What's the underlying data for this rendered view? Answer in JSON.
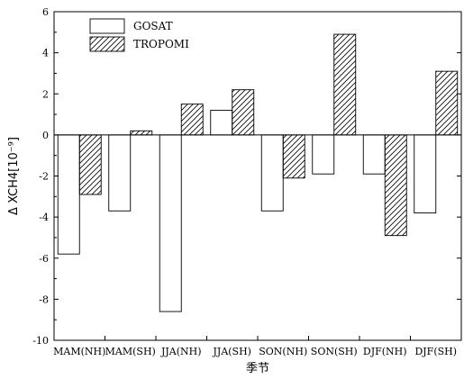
{
  "chart_data": {
    "type": "bar",
    "categories": [
      "MAM(NH)",
      "MAM(SH)",
      "JJA(NH)",
      "JJA(SH)",
      "SON(NH)",
      "SON(SH)",
      "DJF(NH)",
      "DJF(SH)"
    ],
    "series": [
      {
        "name": "GOSAT",
        "values": [
          -5.8,
          -3.7,
          -8.6,
          1.2,
          -3.7,
          -1.9,
          -1.9,
          -3.8
        ],
        "pattern": "none"
      },
      {
        "name": "TROPOMI",
        "values": [
          -2.9,
          0.2,
          1.5,
          2.2,
          -2.1,
          4.9,
          -4.9,
          3.1
        ],
        "pattern": "hatch"
      }
    ],
    "title": "",
    "xlabel": "季节",
    "ylabel": "Δ XCH4[10⁻⁹]",
    "ylim": [
      -10,
      6
    ],
    "yticks": [
      -10,
      -8,
      -6,
      -4,
      -2,
      0,
      2,
      4,
      6
    ],
    "grid": false,
    "legend_position": "top-left"
  }
}
